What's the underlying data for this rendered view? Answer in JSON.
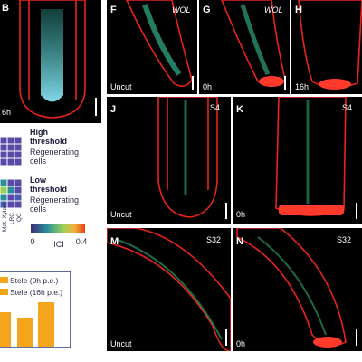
{
  "panels": [
    {
      "letter": "B",
      "label": "6h"
    },
    {
      "letter": "F",
      "genotype": "WOL",
      "label": "Uncut"
    },
    {
      "letter": "G",
      "genotype": "WOL",
      "label": "0h"
    },
    {
      "letter": "H",
      "label": "16h"
    },
    {
      "letter": "J",
      "stage": "S4",
      "label": "Uncut"
    },
    {
      "letter": "K",
      "stage": "S4",
      "label": "0h"
    },
    {
      "letter": "M",
      "stage": "S32",
      "label": "Uncut"
    },
    {
      "letter": "N",
      "stage": "S32",
      "label": "0h"
    }
  ],
  "heatmap": {
    "high": {
      "title": "High threshold",
      "subtitle": "Regenerating cells"
    },
    "low": {
      "title": "Low threshold",
      "subtitle": "Regenerating cells"
    },
    "columns": [
      "Mat. Xylem",
      "LRC",
      "QC"
    ]
  },
  "colorbar": {
    "min": 0,
    "label": "ICI",
    "max": 0.4
  },
  "inset_legend": [
    "Stele (0h p.e.)",
    "Stele (16h p.e.)"
  ]
}
